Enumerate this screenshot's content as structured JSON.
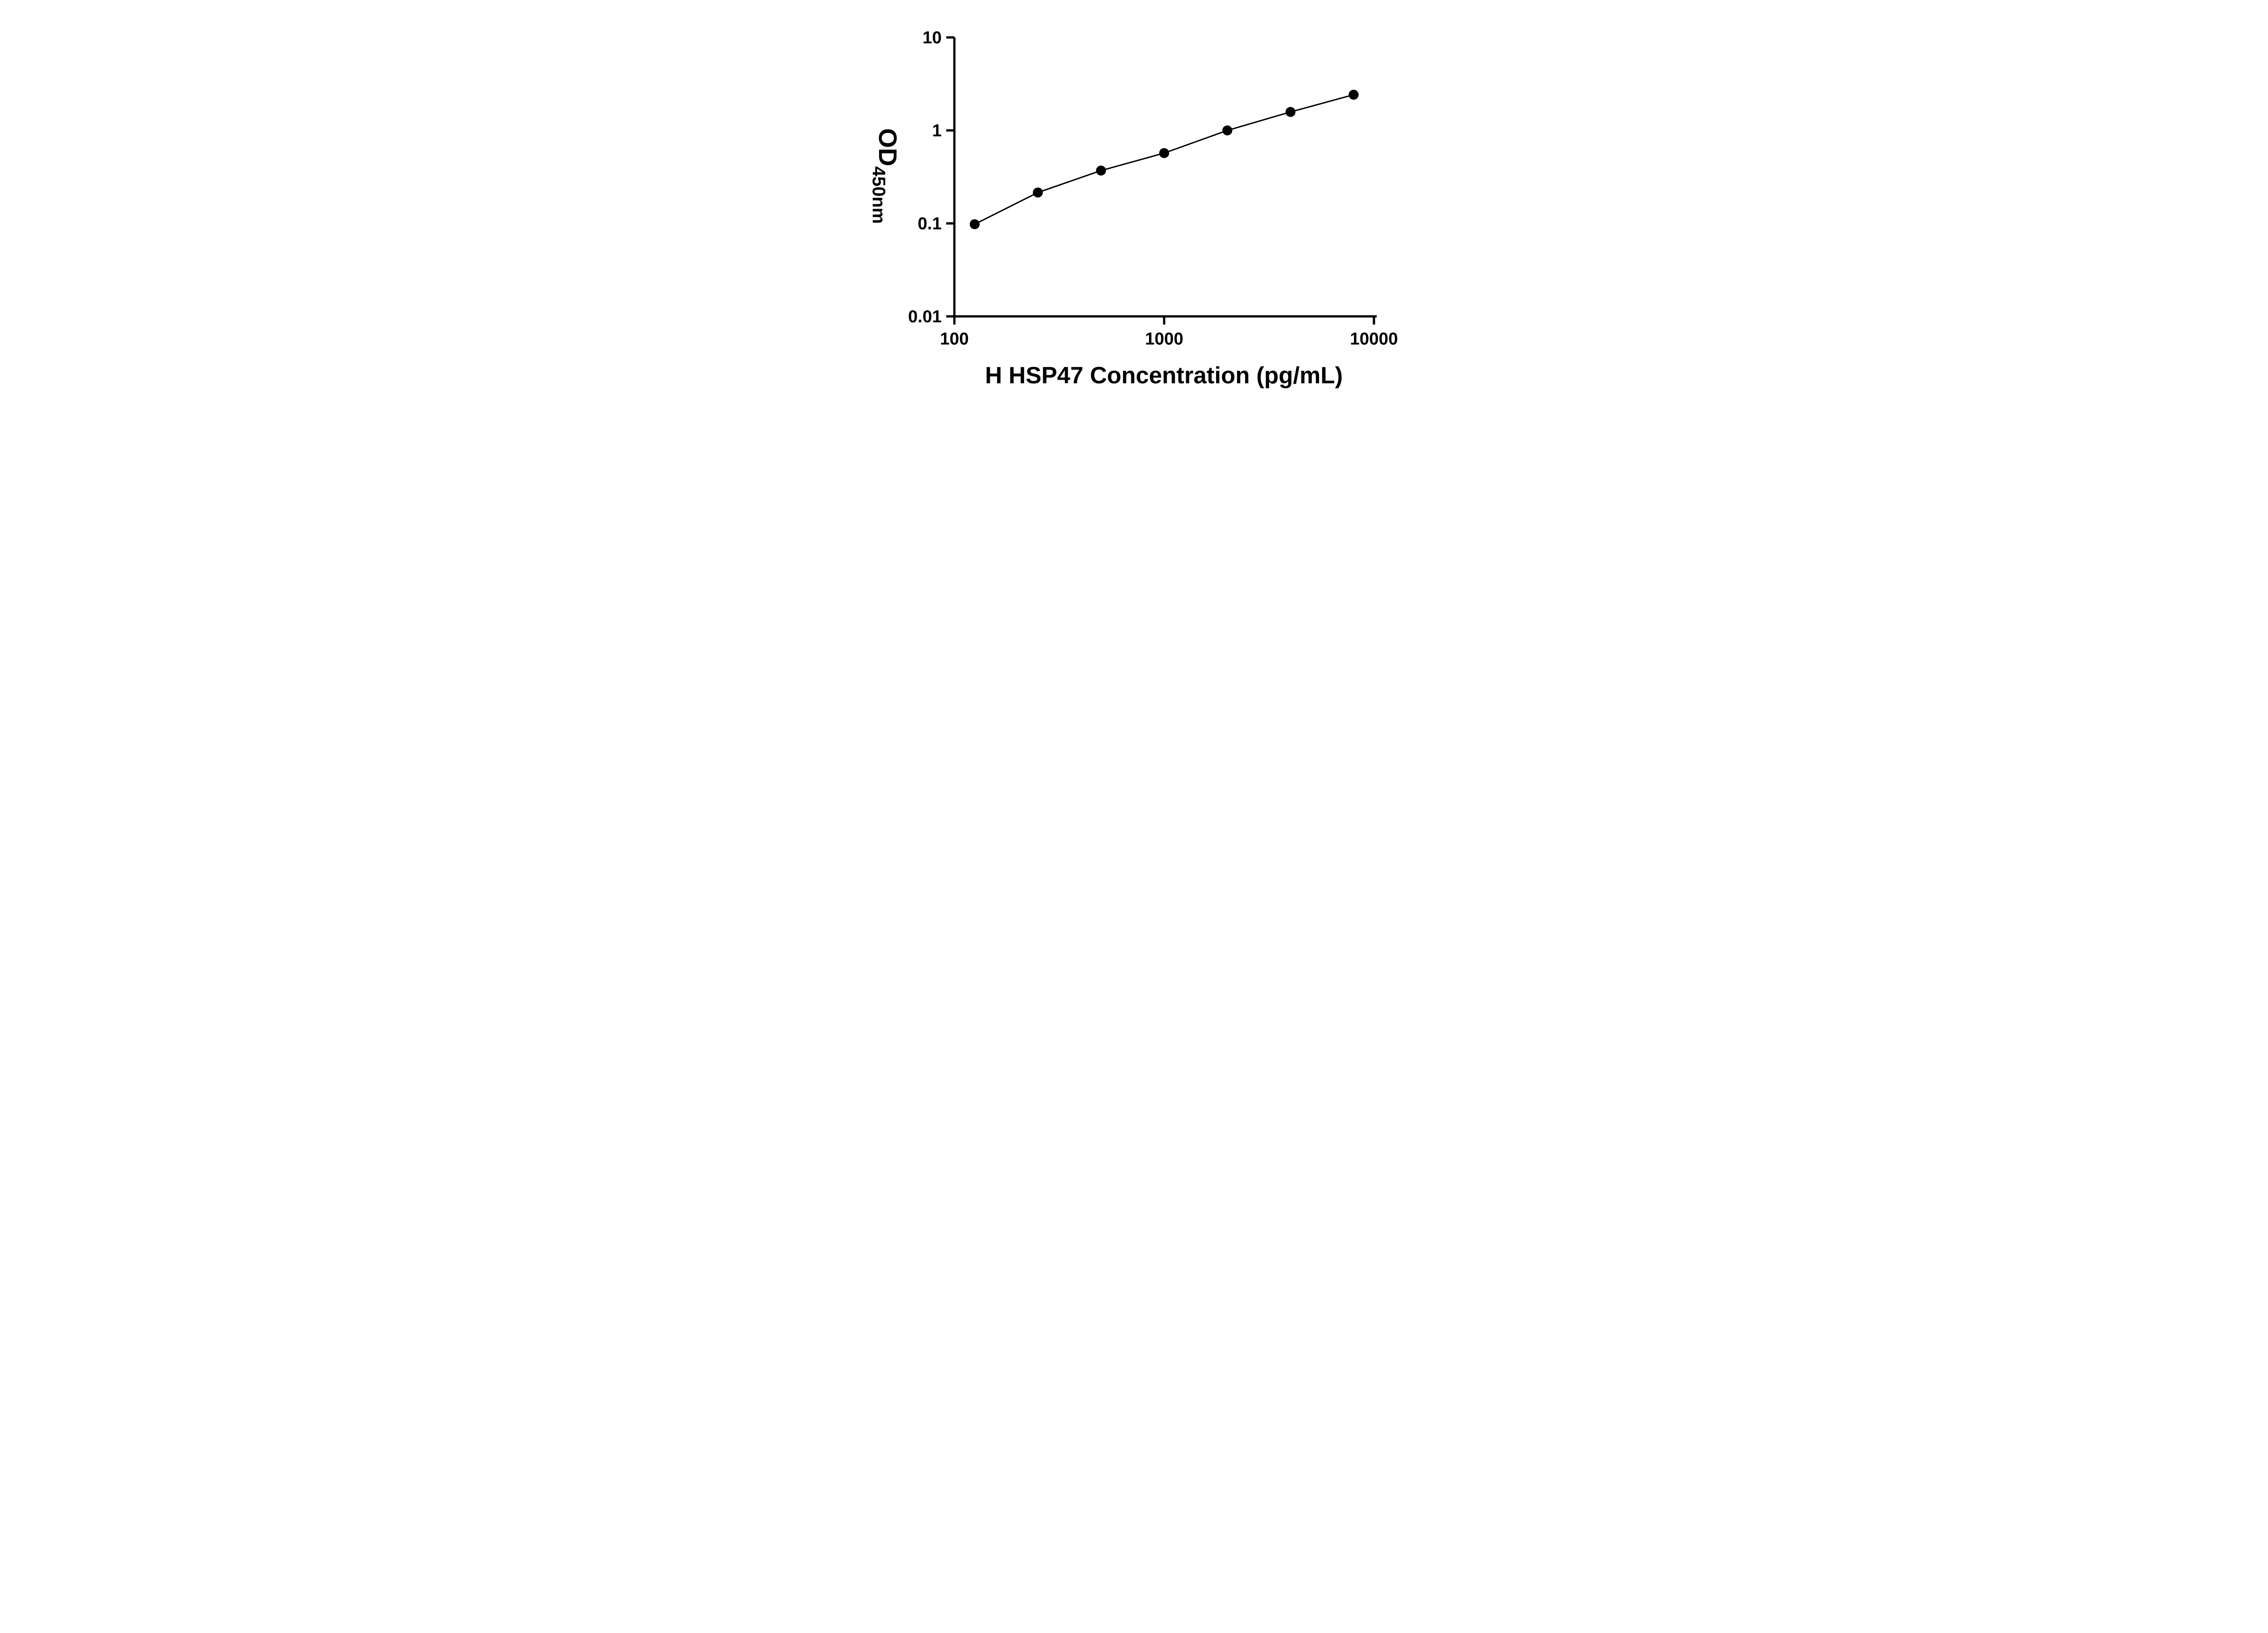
{
  "chart_data": {
    "type": "line",
    "title": "",
    "xlabel": "H HSP47 Concentration (pg/mL)",
    "ylabel_main": "OD",
    "ylabel_sub": "450nm",
    "x_scale": "log10",
    "y_scale": "log10",
    "xlim": [
      100,
      10000
    ],
    "ylim": [
      0.01,
      10
    ],
    "x_ticks": [
      100,
      1000,
      10000
    ],
    "x_tick_labels": [
      "100",
      "1000",
      "10000"
    ],
    "y_ticks": [
      0.01,
      0.1,
      1,
      10
    ],
    "y_tick_labels": [
      "0.01",
      "0.1",
      "1",
      "10"
    ],
    "grid": false,
    "legend": "none",
    "series": [
      {
        "x": [
          125,
          250,
          500,
          1000,
          2000,
          4000,
          8000
        ],
        "y": [
          0.098,
          0.215,
          0.37,
          0.57,
          1.0,
          1.58,
          2.42
        ],
        "marker": "circle-filled",
        "color": "#000000"
      }
    ]
  },
  "styles": {
    "background": "#ffffff",
    "axis_color": "#000000",
    "marker_color": "#000000",
    "line_color": "#000000"
  }
}
